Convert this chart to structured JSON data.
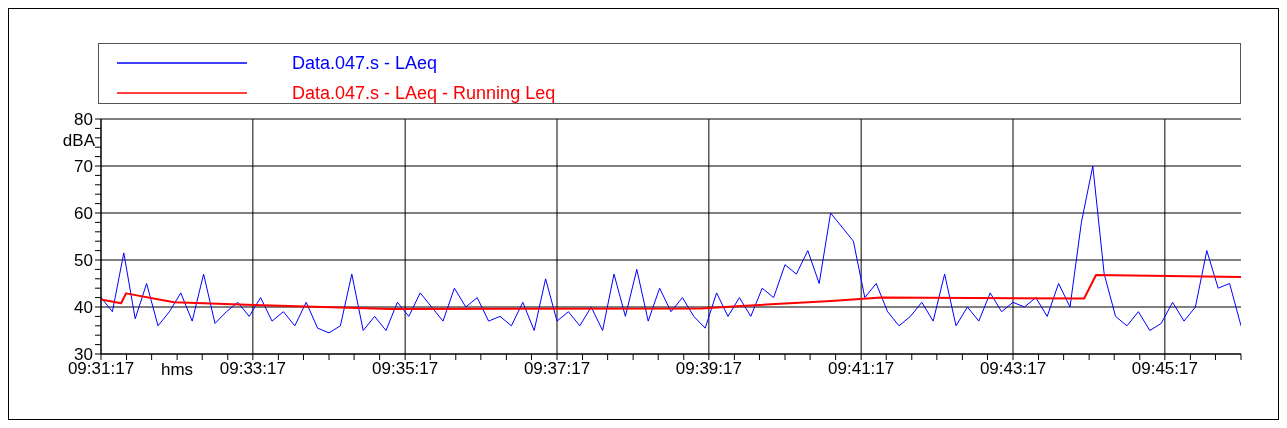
{
  "chart_data": {
    "type": "line",
    "xlabel": "hms",
    "ylabel": "dBA",
    "legend": "top",
    "grid": true,
    "marker": "none",
    "line_style": "solid",
    "xlim": [
      9.5214,
      9.7714
    ],
    "ylim": [
      30,
      80
    ],
    "xticks": [
      {
        "value": 9.5214,
        "label": "09:31:17"
      },
      {
        "value": 9.527,
        "label": null
      },
      {
        "value": 9.5325,
        "label": null
      },
      {
        "value": 9.5381,
        "label": null
      },
      {
        "value": 9.5436,
        "label": null
      },
      {
        "value": 9.5492,
        "label": null
      },
      {
        "value": 9.5547,
        "label": "09:33:17"
      },
      {
        "value": 9.5603,
        "label": null
      },
      {
        "value": 9.5658,
        "label": null
      },
      {
        "value": 9.5714,
        "label": null
      },
      {
        "value": 9.5769,
        "label": null
      },
      {
        "value": 9.5825,
        "label": null
      },
      {
        "value": 9.5881,
        "label": "09:35:17"
      },
      {
        "value": 9.5936,
        "label": null
      },
      {
        "value": 9.5992,
        "label": null
      },
      {
        "value": 9.6047,
        "label": null
      },
      {
        "value": 9.6103,
        "label": null
      },
      {
        "value": 9.6158,
        "label": null
      },
      {
        "value": 9.6214,
        "label": "09:37:17"
      },
      {
        "value": 9.627,
        "label": null
      },
      {
        "value": 9.6325,
        "label": null
      },
      {
        "value": 9.6381,
        "label": null
      },
      {
        "value": 9.6436,
        "label": null
      },
      {
        "value": 9.6492,
        "label": null
      },
      {
        "value": 9.6547,
        "label": "09:39:17"
      },
      {
        "value": 9.6603,
        "label": null
      },
      {
        "value": 9.6658,
        "label": null
      },
      {
        "value": 9.6714,
        "label": null
      },
      {
        "value": 9.6769,
        "label": null
      },
      {
        "value": 9.6825,
        "label": null
      },
      {
        "value": 9.6881,
        "label": "09:41:17"
      },
      {
        "value": 9.6936,
        "label": null
      },
      {
        "value": 9.6992,
        "label": null
      },
      {
        "value": 9.7047,
        "label": null
      },
      {
        "value": 9.7103,
        "label": null
      },
      {
        "value": 9.7158,
        "label": null
      },
      {
        "value": 9.7214,
        "label": "09:43:17"
      },
      {
        "value": 9.727,
        "label": null
      },
      {
        "value": 9.7325,
        "label": null
      },
      {
        "value": 9.7381,
        "label": null
      },
      {
        "value": 9.7436,
        "label": null
      },
      {
        "value": 9.7492,
        "label": null
      },
      {
        "value": 9.7547,
        "label": "09:45:17"
      },
      {
        "value": 9.7603,
        "label": null
      },
      {
        "value": 9.7658,
        "label": null
      },
      {
        "value": 9.7714,
        "label": null
      }
    ],
    "yticks": [
      30,
      {
        "value": 32,
        "label": null
      },
      {
        "value": 34,
        "label": null
      },
      {
        "value": 36,
        "label": null
      },
      {
        "value": 38,
        "label": null
      },
      40,
      {
        "value": 42,
        "label": null
      },
      {
        "value": 44,
        "label": null
      },
      {
        "value": 46,
        "label": null
      },
      {
        "value": 48,
        "label": null
      },
      50,
      {
        "value": 52,
        "label": null
      },
      {
        "value": 54,
        "label": null
      },
      {
        "value": 56,
        "label": null
      },
      {
        "value": 58,
        "label": null
      },
      60,
      {
        "value": 62,
        "label": null
      },
      {
        "value": 64,
        "label": null
      },
      {
        "value": 66,
        "label": null
      },
      {
        "value": 68,
        "label": null
      },
      70,
      {
        "value": 72,
        "label": null
      },
      {
        "value": 74,
        "label": null
      },
      {
        "value": 76,
        "label": null
      },
      {
        "value": 78,
        "label": null
      },
      80
    ],
    "series": [
      {
        "name": "Data.047.s - LAeq",
        "color": "#0000ff",
        "x": [
          9.5214,
          9.5239,
          9.5264,
          9.5289,
          9.5314,
          9.5339,
          9.5364,
          9.5389,
          9.5414,
          9.5439,
          9.5464,
          9.5489,
          9.5514,
          9.5539,
          9.5564,
          9.5589,
          9.5614,
          9.5639,
          9.5664,
          9.5689,
          9.5714,
          9.5739,
          9.5764,
          9.5789,
          9.5814,
          9.5839,
          9.5864,
          9.5889,
          9.5914,
          9.5939,
          9.5964,
          9.5989,
          9.6014,
          9.6039,
          9.6064,
          9.6089,
          9.6114,
          9.6139,
          9.6164,
          9.6189,
          9.6214,
          9.6239,
          9.6264,
          9.6289,
          9.6314,
          9.6339,
          9.6364,
          9.6389,
          9.6414,
          9.6439,
          9.6464,
          9.6489,
          9.6514,
          9.6539,
          9.6564,
          9.6589,
          9.6614,
          9.6639,
          9.6664,
          9.6689,
          9.6714,
          9.6739,
          9.6764,
          9.6789,
          9.6814,
          9.6839,
          9.6864,
          9.6889,
          9.6914,
          9.6939,
          9.6964,
          9.6989,
          9.7014,
          9.7039,
          9.7064,
          9.7089,
          9.7114,
          9.7139,
          9.7164,
          9.7189,
          9.7214,
          9.7239,
          9.7264,
          9.7289,
          9.7314,
          9.7339,
          9.7364,
          9.7389,
          9.7414,
          9.7439,
          9.7464,
          9.7489,
          9.7514,
          9.7539,
          9.7564,
          9.7589,
          9.7614,
          9.7639,
          9.7664,
          9.7689,
          9.7714
        ],
        "values": [
          42,
          39,
          51.5,
          37.5,
          45,
          36,
          39,
          43,
          37,
          47,
          36.5,
          39,
          41,
          38,
          42,
          37,
          39,
          36,
          41,
          35.5,
          34.5,
          36,
          47,
          35,
          38,
          35,
          41,
          38,
          43,
          40,
          37,
          44,
          40,
          42,
          37,
          38,
          36,
          41,
          35,
          46,
          37,
          39,
          36,
          40,
          35,
          47,
          38,
          48,
          37,
          44,
          39,
          42,
          38,
          35.5,
          43,
          38,
          42,
          38,
          44,
          42,
          49,
          47,
          52,
          45,
          60,
          57,
          54,
          42,
          45,
          39,
          36,
          38,
          41,
          37,
          47,
          36,
          40,
          37,
          43,
          39,
          41,
          40,
          42,
          38,
          45,
          40,
          58,
          70,
          47,
          38,
          36,
          39,
          35,
          36.5,
          41,
          37,
          40,
          52,
          44,
          45,
          36
        ]
      },
      {
        "name": "Data.047.s - LAeq - Running Leq",
        "color": "#ff0000",
        "x": [
          9.5214,
          9.5258,
          9.5269,
          9.5374,
          9.555,
          9.585,
          9.653,
          9.6618,
          9.6815,
          9.6925,
          9.737,
          9.7396,
          9.7714
        ],
        "values": [
          41.6,
          40.8,
          42.9,
          41,
          40.4,
          39.6,
          39.7,
          40.2,
          41.3,
          42,
          41.8,
          46.8,
          46.4
        ]
      }
    ]
  }
}
